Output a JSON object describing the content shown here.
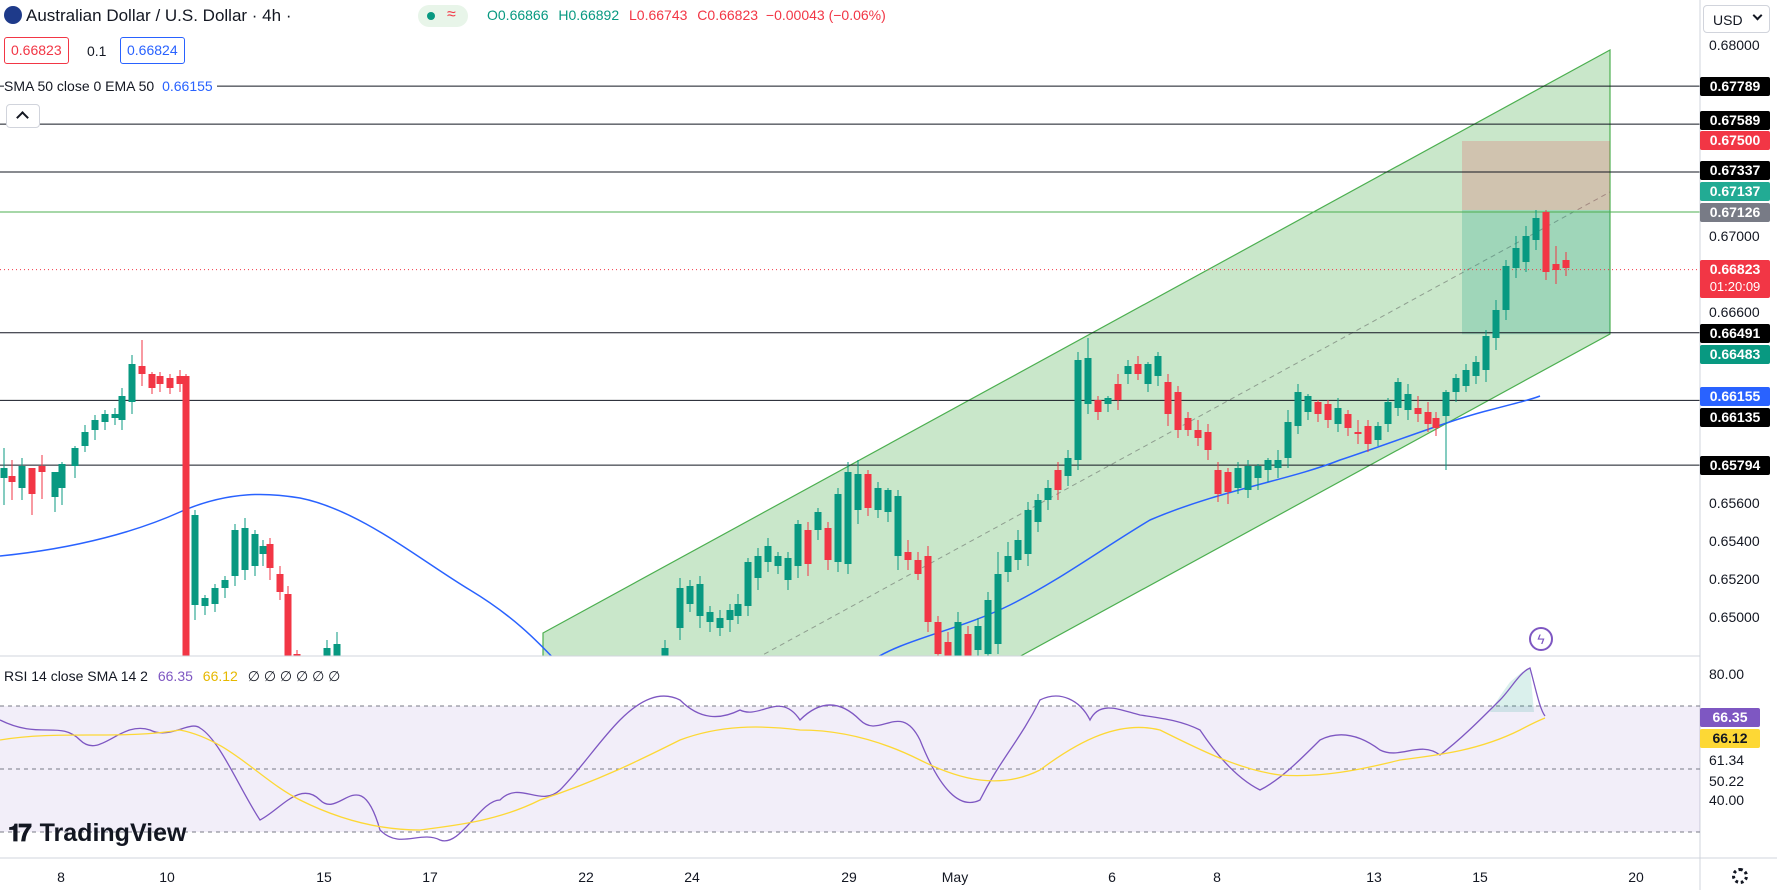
{
  "header": {
    "symbol": "Australian Dollar / U.S. Dollar · 4h ·",
    "open": "O0.66866",
    "high": "H0.66892",
    "low": "L0.66743",
    "close": "C0.66823",
    "change": "−0.00043 (−0.06%)",
    "sell_price": "0.66823",
    "spread": "0.1",
    "buy_price": "0.66824",
    "currency": "USD"
  },
  "indicators": {
    "sma_label": "SMA 50 close 0 EMA 50",
    "sma_value": "0.66155",
    "rsi_label": "RSI 14 close SMA 14 2",
    "rsi_value": "66.35",
    "rsi_sma_value": "66.12",
    "rsi_extra": "∅ ∅ ∅ ∅ ∅ ∅"
  },
  "price_axis": [
    "0.68000",
    "0.67000",
    "0.66600",
    "0.65600",
    "0.65400",
    "0.65200",
    "0.65000"
  ],
  "price_tags": [
    {
      "label": "0.67789",
      "color": "#000000"
    },
    {
      "label": "0.67589",
      "color": "#000000"
    },
    {
      "label": "0.67500",
      "color": "#f23645"
    },
    {
      "label": "0.67337",
      "color": "#000000"
    },
    {
      "label": "0.67137",
      "color": "#22ab94"
    },
    {
      "label": "0.67126",
      "color": "#787b86"
    },
    {
      "label": "0.66823",
      "color": "#f23645",
      "sub": "01:20:09"
    },
    {
      "label": "0.66491",
      "color": "#000000"
    },
    {
      "label": "0.66483",
      "color": "#089981"
    },
    {
      "label": "0.66155",
      "color": "#2962ff"
    },
    {
      "label": "0.66135",
      "color": "#000000"
    },
    {
      "label": "0.65794",
      "color": "#000000"
    }
  ],
  "rsi_axis": [
    "80.00",
    "61.34",
    "50.22",
    "40.00"
  ],
  "rsi_tags": [
    {
      "label": "66.35",
      "color": "#7e57c2"
    },
    {
      "label": "66.12",
      "color": "#fdd835"
    }
  ],
  "time_axis": [
    "8",
    "10",
    "15",
    "17",
    "22",
    "24",
    "29",
    "May",
    "6",
    "8",
    "13",
    "15",
    "20"
  ],
  "branding": "TradingView",
  "colors": {
    "up": "#089981",
    "down": "#f23645",
    "ema": "#2962ff",
    "rsi": "#7e57c2",
    "rsi_sma": "#fdd835",
    "channel": "#4caf50"
  },
  "chart_data": {
    "type": "candlestick",
    "series": [
      {
        "name": "AUD/USD 4h",
        "x_ticks": [
          "8",
          "10",
          "15",
          "17",
          "22",
          "24",
          "29",
          "May",
          "6",
          "8",
          "13",
          "15",
          "20"
        ]
      },
      {
        "name": "EMA 50",
        "value": 0.66155
      },
      {
        "name": "RSI 14",
        "value": 66.35
      },
      {
        "name": "RSI SMA 14",
        "value": 66.12
      }
    ],
    "horizontal_levels": [
      0.67789,
      0.67589,
      0.67337,
      0.67126,
      0.66491,
      0.66135,
      0.65794
    ],
    "position": {
      "target": 0.675,
      "entry": 0.67137,
      "stop": 0.66483
    },
    "last_price": 0.66823
  }
}
